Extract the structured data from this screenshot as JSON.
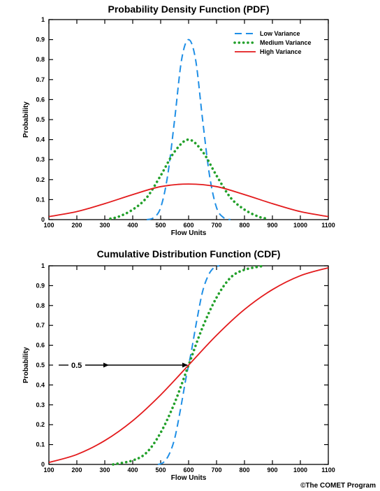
{
  "credit": "©The COMET Program",
  "colors": {
    "low": "#1f8fe6",
    "medium": "#22a02a",
    "high": "#e31a1c"
  },
  "chart_data": [
    {
      "type": "line",
      "title": "Probability Density Function (PDF)",
      "xlabel": "Flow Units",
      "ylabel": "Probability",
      "xlim": [
        100,
        1100
      ],
      "ylim": [
        0,
        1
      ],
      "xticks": [
        "100",
        "200",
        "300",
        "400",
        "500",
        "600",
        "700",
        "800",
        "900",
        "1000",
        "1100"
      ],
      "yticks": [
        "0",
        "0.1",
        "0.2",
        "0.3",
        "0.4",
        "0.5",
        "0.6",
        "0.7",
        "0.8",
        "0.9",
        "1"
      ],
      "legend_position": "top-right",
      "series": [
        {
          "name": "Low Variance",
          "style": "dashed",
          "color": "#1f8fe6",
          "x": [
            450,
            475,
            500,
            525,
            550,
            575,
            600,
            625,
            650,
            675,
            700,
            725,
            750
          ],
          "y": [
            0.0,
            0.01,
            0.06,
            0.22,
            0.5,
            0.8,
            0.9,
            0.8,
            0.5,
            0.22,
            0.06,
            0.01,
            0.0
          ]
        },
        {
          "name": "Medium Variance",
          "style": "dotted",
          "color": "#22a02a",
          "x": [
            320,
            350,
            400,
            450,
            500,
            550,
            600,
            650,
            700,
            750,
            800,
            850,
            880
          ],
          "y": [
            0.005,
            0.015,
            0.05,
            0.11,
            0.22,
            0.34,
            0.4,
            0.34,
            0.22,
            0.11,
            0.05,
            0.015,
            0.005
          ]
        },
        {
          "name": "High Variance",
          "style": "solid",
          "color": "#e31a1c",
          "x": [
            100,
            200,
            300,
            400,
            500,
            600,
            700,
            800,
            900,
            1000,
            1100
          ],
          "y": [
            0.015,
            0.04,
            0.08,
            0.125,
            0.165,
            0.178,
            0.165,
            0.125,
            0.08,
            0.04,
            0.015
          ]
        }
      ]
    },
    {
      "type": "line",
      "title": "Cumulative Distribution Function (CDF)",
      "xlabel": "Flow Units",
      "ylabel": "Probability",
      "xlim": [
        100,
        1100
      ],
      "ylim": [
        0,
        1
      ],
      "xticks": [
        "100",
        "200",
        "300",
        "400",
        "500",
        "600",
        "700",
        "800",
        "900",
        "1000",
        "1100"
      ],
      "yticks": [
        "0",
        "0.1",
        "0.2",
        "0.3",
        "0.4",
        "0.5",
        "0.6",
        "0.7",
        "0.8",
        "0.9",
        "1"
      ],
      "annotation": {
        "text": "0.5",
        "from_x": 100,
        "to_x": 600,
        "y": 0.5
      },
      "series": [
        {
          "name": "Low Variance",
          "style": "dashed",
          "color": "#1f8fe6",
          "x": [
            490,
            510,
            530,
            550,
            570,
            590,
            600,
            610,
            630,
            650,
            670,
            690,
            710
          ],
          "y": [
            0.0,
            0.01,
            0.05,
            0.13,
            0.27,
            0.43,
            0.5,
            0.57,
            0.73,
            0.87,
            0.95,
            0.99,
            1.0
          ]
        },
        {
          "name": "Medium Variance",
          "style": "dotted",
          "color": "#22a02a",
          "x": [
            330,
            400,
            450,
            500,
            550,
            600,
            650,
            700,
            750,
            800,
            870
          ],
          "y": [
            0.0,
            0.02,
            0.06,
            0.16,
            0.31,
            0.5,
            0.69,
            0.84,
            0.94,
            0.98,
            1.0
          ]
        },
        {
          "name": "High Variance",
          "style": "solid",
          "color": "#e31a1c",
          "x": [
            100,
            200,
            300,
            400,
            500,
            600,
            700,
            800,
            900,
            1000,
            1100
          ],
          "y": [
            0.01,
            0.05,
            0.12,
            0.22,
            0.35,
            0.5,
            0.65,
            0.78,
            0.88,
            0.95,
            0.99
          ]
        }
      ]
    }
  ]
}
